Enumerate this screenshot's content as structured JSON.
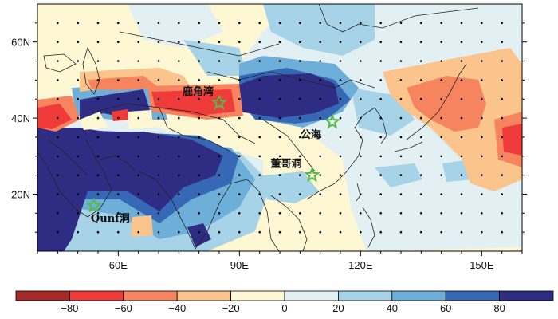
{
  "map": {
    "lon_range": [
      40,
      160
    ],
    "lat_range": [
      5,
      70
    ],
    "x_ticks": [
      {
        "value": 60,
        "label": "60E"
      },
      {
        "value": 90,
        "label": "90E"
      },
      {
        "value": 120,
        "label": "120E"
      },
      {
        "value": 150,
        "label": "150E"
      }
    ],
    "y_ticks": [
      {
        "value": 20,
        "label": "20N"
      },
      {
        "value": 40,
        "label": "40N"
      },
      {
        "value": 60,
        "label": "60N"
      }
    ],
    "stipple_spacing_deg": 5,
    "site_marker_color": "#55b94a",
    "sites": [
      {
        "name": "鹿角湾",
        "lon": 85,
        "lat": 44
      },
      {
        "name": "公海",
        "lon": 113,
        "lat": 39
      },
      {
        "name": "董哥洞",
        "lon": 108,
        "lat": 25
      },
      {
        "name": "Qunf洞",
        "lon": 54,
        "lat": 17
      }
    ]
  },
  "colorbar": {
    "boundaries": [
      -100,
      -80,
      -60,
      -40,
      -20,
      0,
      20,
      40,
      60,
      80,
      100
    ],
    "tick_values": [
      -80,
      -60,
      -40,
      -20,
      0,
      20,
      40,
      60,
      80
    ],
    "tick_labels": [
      "−80",
      "−60",
      "−40",
      "−20",
      "0",
      "20",
      "40",
      "60",
      "80"
    ],
    "colors": [
      "#a52a28",
      "#ef3c3a",
      "#f6845e",
      "#fcc48d",
      "#fdf7d3",
      "#e2f0f3",
      "#a6d3e7",
      "#6dafd8",
      "#3768b5",
      "#2f2c84"
    ]
  }
}
